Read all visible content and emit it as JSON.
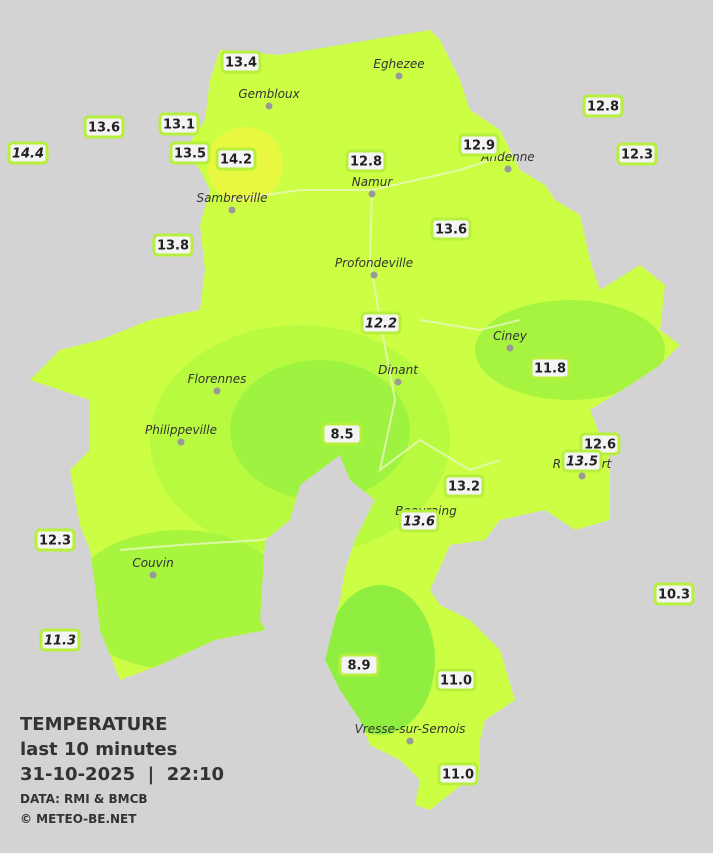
{
  "title": "TEMPERATURE",
  "subtitle": "last 10 minutes",
  "datetime": "31-10-2025  |  22:10",
  "source": "DATA: RMI & BMCB",
  "credit": "© METEO-BE.NET",
  "cities": [
    "Eghezee",
    "Gembloux",
    "Andenne",
    "Sambreville",
    "Namur",
    "Profondeville",
    "Ciney",
    "Dinant",
    "Florennes",
    "Philippeville",
    "Rochefort",
    "Beauraing",
    "Couvin",
    "Vresse-sur-Semois"
  ],
  "stations": [
    "13.4",
    "13.6",
    "13.1",
    "14.4",
    "13.5",
    "14.2",
    "12.8",
    "12.9",
    "12.8",
    "12.3",
    "13.8",
    "13.6",
    "12.2",
    "11.8",
    "8.5",
    "12.6",
    "13.5",
    "13.2",
    "13.6",
    "12.3",
    "10.3",
    "11.3",
    "8.9",
    "11.0",
    "11.0"
  ]
}
